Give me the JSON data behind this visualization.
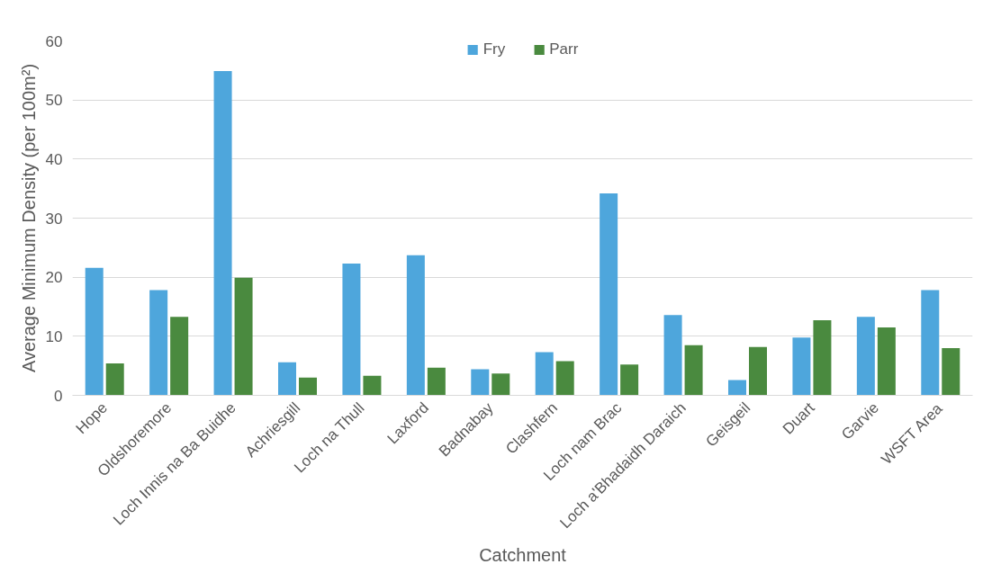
{
  "chart_data": {
    "type": "bar",
    "xlabel": "Catchment",
    "ylabel": "Average Minimum Density (per 100m²)",
    "categories": [
      "Hope",
      "Oldshoremore",
      "Loch Innis na Ba Buidhe",
      "Achriesgill",
      "Loch na Thull",
      "Laxford",
      "Badnabay",
      "Clashfern",
      "Loch nam Brac",
      "Loch a'Bhadaidh Daraich",
      "Geisgeil",
      "Duart",
      "Garvie",
      "WSFT Area"
    ],
    "series": [
      {
        "name": "Fry",
        "color": "#4ea6dc",
        "values": [
          21.6,
          17.8,
          54.9,
          5.6,
          22.3,
          23.7,
          4.4,
          7.3,
          34.2,
          13.6,
          2.6,
          9.8,
          13.3,
          17.8
        ]
      },
      {
        "name": "Parr",
        "color": "#4a8a3f",
        "values": [
          5.4,
          13.3,
          19.9,
          3.0,
          3.3,
          4.7,
          3.7,
          5.8,
          5.2,
          8.5,
          8.2,
          12.7,
          11.5,
          8.0
        ]
      }
    ],
    "ylim": [
      0,
      60
    ],
    "yticks": [
      0,
      10,
      20,
      30,
      40,
      50,
      60
    ],
    "grid": "y",
    "legend": "top"
  }
}
